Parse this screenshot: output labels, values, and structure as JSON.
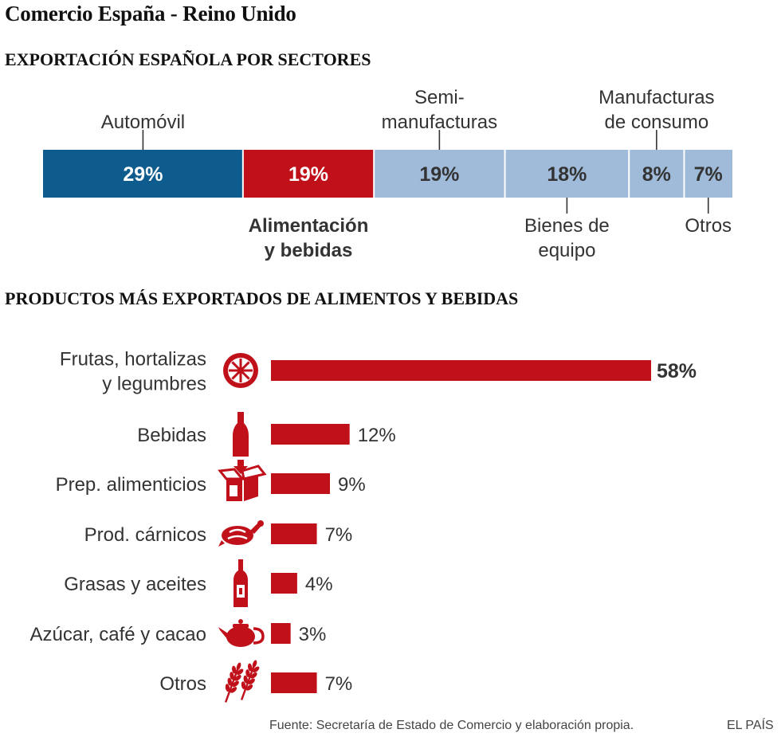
{
  "title": "Comercio España - Reino Unido",
  "section1_title": "EXPORTACIÓN ESPAÑOLA POR SECTORES",
  "section2_title": "PRODUCTOS MÁS EXPORTADOS DE ALIMENTOS Y BEBIDAS",
  "source": "Fuente: Secretaría de Estado de Comercio y elaboración propia.",
  "brand": "EL PAÍS",
  "colors": {
    "blue": "#0e5c8e",
    "red": "#c0111b",
    "light": "#a0bbd9",
    "text": "#333333"
  },
  "chart_data": [
    {
      "type": "bar",
      "orientation": "horizontal-stacked",
      "title": "EXPORTACIÓN ESPAÑOLA POR SECTORES",
      "segments": [
        {
          "name": "Automóvil",
          "label_lines": [
            "Automóvil"
          ],
          "value": 29,
          "value_label": "29%",
          "color": "#0e5c8e",
          "label_position": "top",
          "highlight": false
        },
        {
          "name": "Alimentación y bebidas",
          "label_lines": [
            "Alimentación",
            "y bebidas"
          ],
          "value": 19,
          "value_label": "19%",
          "color": "#c0111b",
          "label_position": "bottom",
          "highlight": true
        },
        {
          "name": "Semimanufacturas",
          "label_lines": [
            "Semi-",
            "manufacturas"
          ],
          "value": 19,
          "value_label": "19%",
          "color": "#a0bbd9",
          "label_position": "top",
          "highlight": false
        },
        {
          "name": "Bienes de equipo",
          "label_lines": [
            "Bienes de",
            "equipo"
          ],
          "value": 18,
          "value_label": "18%",
          "color": "#a0bbd9",
          "label_position": "bottom",
          "highlight": false
        },
        {
          "name": "Manufacturas de consumo",
          "label_lines": [
            "Manufacturas",
            "de consumo"
          ],
          "value": 8,
          "value_label": "8%",
          "color": "#a0bbd9",
          "label_position": "top",
          "highlight": false
        },
        {
          "name": "Otros",
          "label_lines": [
            "Otros"
          ],
          "value": 7,
          "value_label": "7%",
          "color": "#a0bbd9",
          "label_position": "bottom",
          "highlight": false
        }
      ]
    },
    {
      "type": "bar",
      "orientation": "horizontal",
      "title": "PRODUCTOS MÁS EXPORTADOS DE ALIMENTOS Y BEBIDAS",
      "xlim": [
        0,
        58
      ],
      "categories": [
        {
          "label_lines": [
            "Frutas, hortalizas",
            "y legumbres"
          ],
          "value": 58,
          "value_label": "58%",
          "icon": "citrus-icon",
          "bold_value": true
        },
        {
          "label_lines": [
            "Bebidas"
          ],
          "value": 12,
          "value_label": "12%",
          "icon": "bottle-icon",
          "bold_value": false
        },
        {
          "label_lines": [
            "Prep. alimenticios"
          ],
          "value": 9,
          "value_label": "9%",
          "icon": "box-icon",
          "bold_value": false
        },
        {
          "label_lines": [
            "Prod. cárnicos"
          ],
          "value": 7,
          "value_label": "7%",
          "icon": "roast-chicken-icon",
          "bold_value": false
        },
        {
          "label_lines": [
            "Grasas y aceites"
          ],
          "value": 4,
          "value_label": "4%",
          "icon": "oil-bottle-icon",
          "bold_value": false
        },
        {
          "label_lines": [
            "Azúcar, café y cacao"
          ],
          "value": 3,
          "value_label": "3%",
          "icon": "teapot-icon",
          "bold_value": false
        },
        {
          "label_lines": [
            "Otros"
          ],
          "value": 7,
          "value_label": "7%",
          "icon": "wheat-icon",
          "bold_value": false
        }
      ]
    }
  ]
}
